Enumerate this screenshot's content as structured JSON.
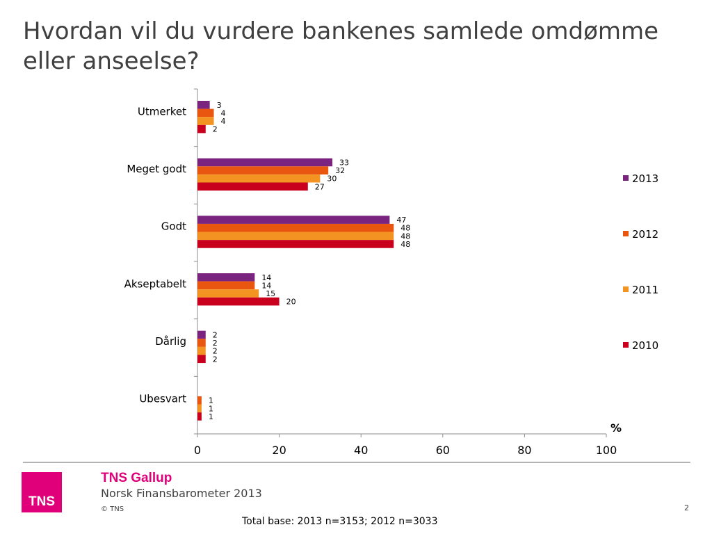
{
  "title": "Hvordan vil du vurdere bankenes samlede omdømme eller anseelse?",
  "chart_data": {
    "type": "bar",
    "orientation": "horizontal",
    "categories": [
      "Utmerket",
      "Meget godt",
      "Godt",
      "Akseptabelt",
      "Dårlig",
      "Ubesvart"
    ],
    "series": [
      {
        "name": "2013",
        "color": "#7a2480",
        "values": [
          3,
          33,
          47,
          14,
          2,
          null
        ]
      },
      {
        "name": "2012",
        "color": "#e8560f",
        "values": [
          4,
          32,
          48,
          14,
          2,
          1
        ]
      },
      {
        "name": "2011",
        "color": "#f39322",
        "values": [
          4,
          30,
          48,
          15,
          2,
          1
        ]
      },
      {
        "name": "2010",
        "color": "#c8001e",
        "values": [
          2,
          27,
          48,
          20,
          2,
          1
        ]
      }
    ],
    "x_ticks": [
      "0",
      "20",
      "40",
      "60",
      "80",
      "100"
    ],
    "xlim": [
      0,
      100
    ],
    "unit_label": "%",
    "legend_position": "right",
    "grid": false
  },
  "footer": {
    "logo_text": "TNS",
    "brand": "TNS Gallup",
    "report": "Norsk Finansbarometer 2013",
    "copyright": "© TNS",
    "page": "2",
    "base": "Total base: 2013 n=3153; 2012 n=3033"
  }
}
